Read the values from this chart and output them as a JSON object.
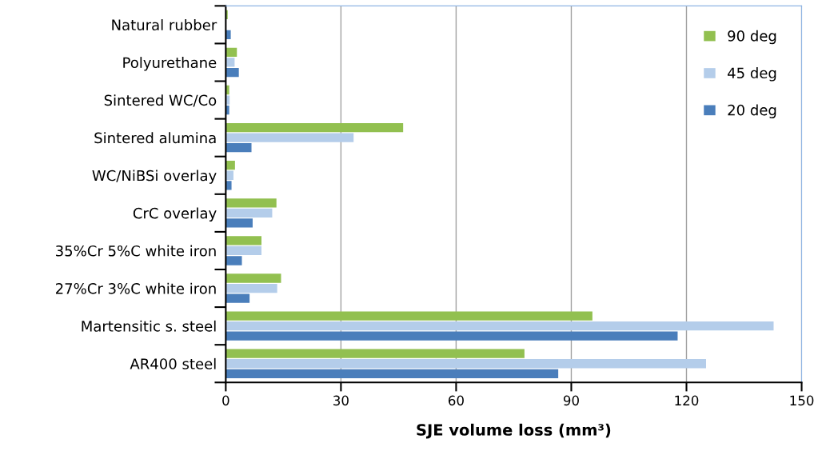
{
  "chart_data": {
    "type": "bar",
    "orientation": "horizontal",
    "xlabel": "SJE volume loss (mm³)",
    "categories": [
      "Natural rubber",
      "Polyurethane",
      "Sintered WC/Co",
      "Sintered alumina",
      "WC/NiBSi overlay",
      "CrC overlay",
      "35%Cr 5%C white iron",
      "27%Cr 3%C white iron",
      "Martensitic s. steel",
      "AR400 steel"
    ],
    "series": [
      {
        "name": "90 deg",
        "color": "#92c050",
        "values": [
          0.5,
          2.9,
          0.9,
          46.2,
          2.4,
          13.2,
          9.3,
          14.4,
          95.5,
          77.8
        ]
      },
      {
        "name": "45 deg",
        "color": "#b4cdea",
        "values": [
          null,
          2.3,
          1.0,
          33.3,
          2.0,
          12.1,
          9.3,
          13.4,
          142.7,
          125.1
        ]
      },
      {
        "name": "20 deg",
        "color": "#4a7ebb",
        "values": [
          1.3,
          3.4,
          0.9,
          6.7,
          1.5,
          7.0,
          4.2,
          6.2,
          117.7,
          86.6
        ]
      }
    ],
    "xlim": [
      0,
      150
    ],
    "xticks": [
      0,
      30,
      60,
      90,
      120,
      150
    ],
    "grid": "x",
    "legend": "top right"
  }
}
